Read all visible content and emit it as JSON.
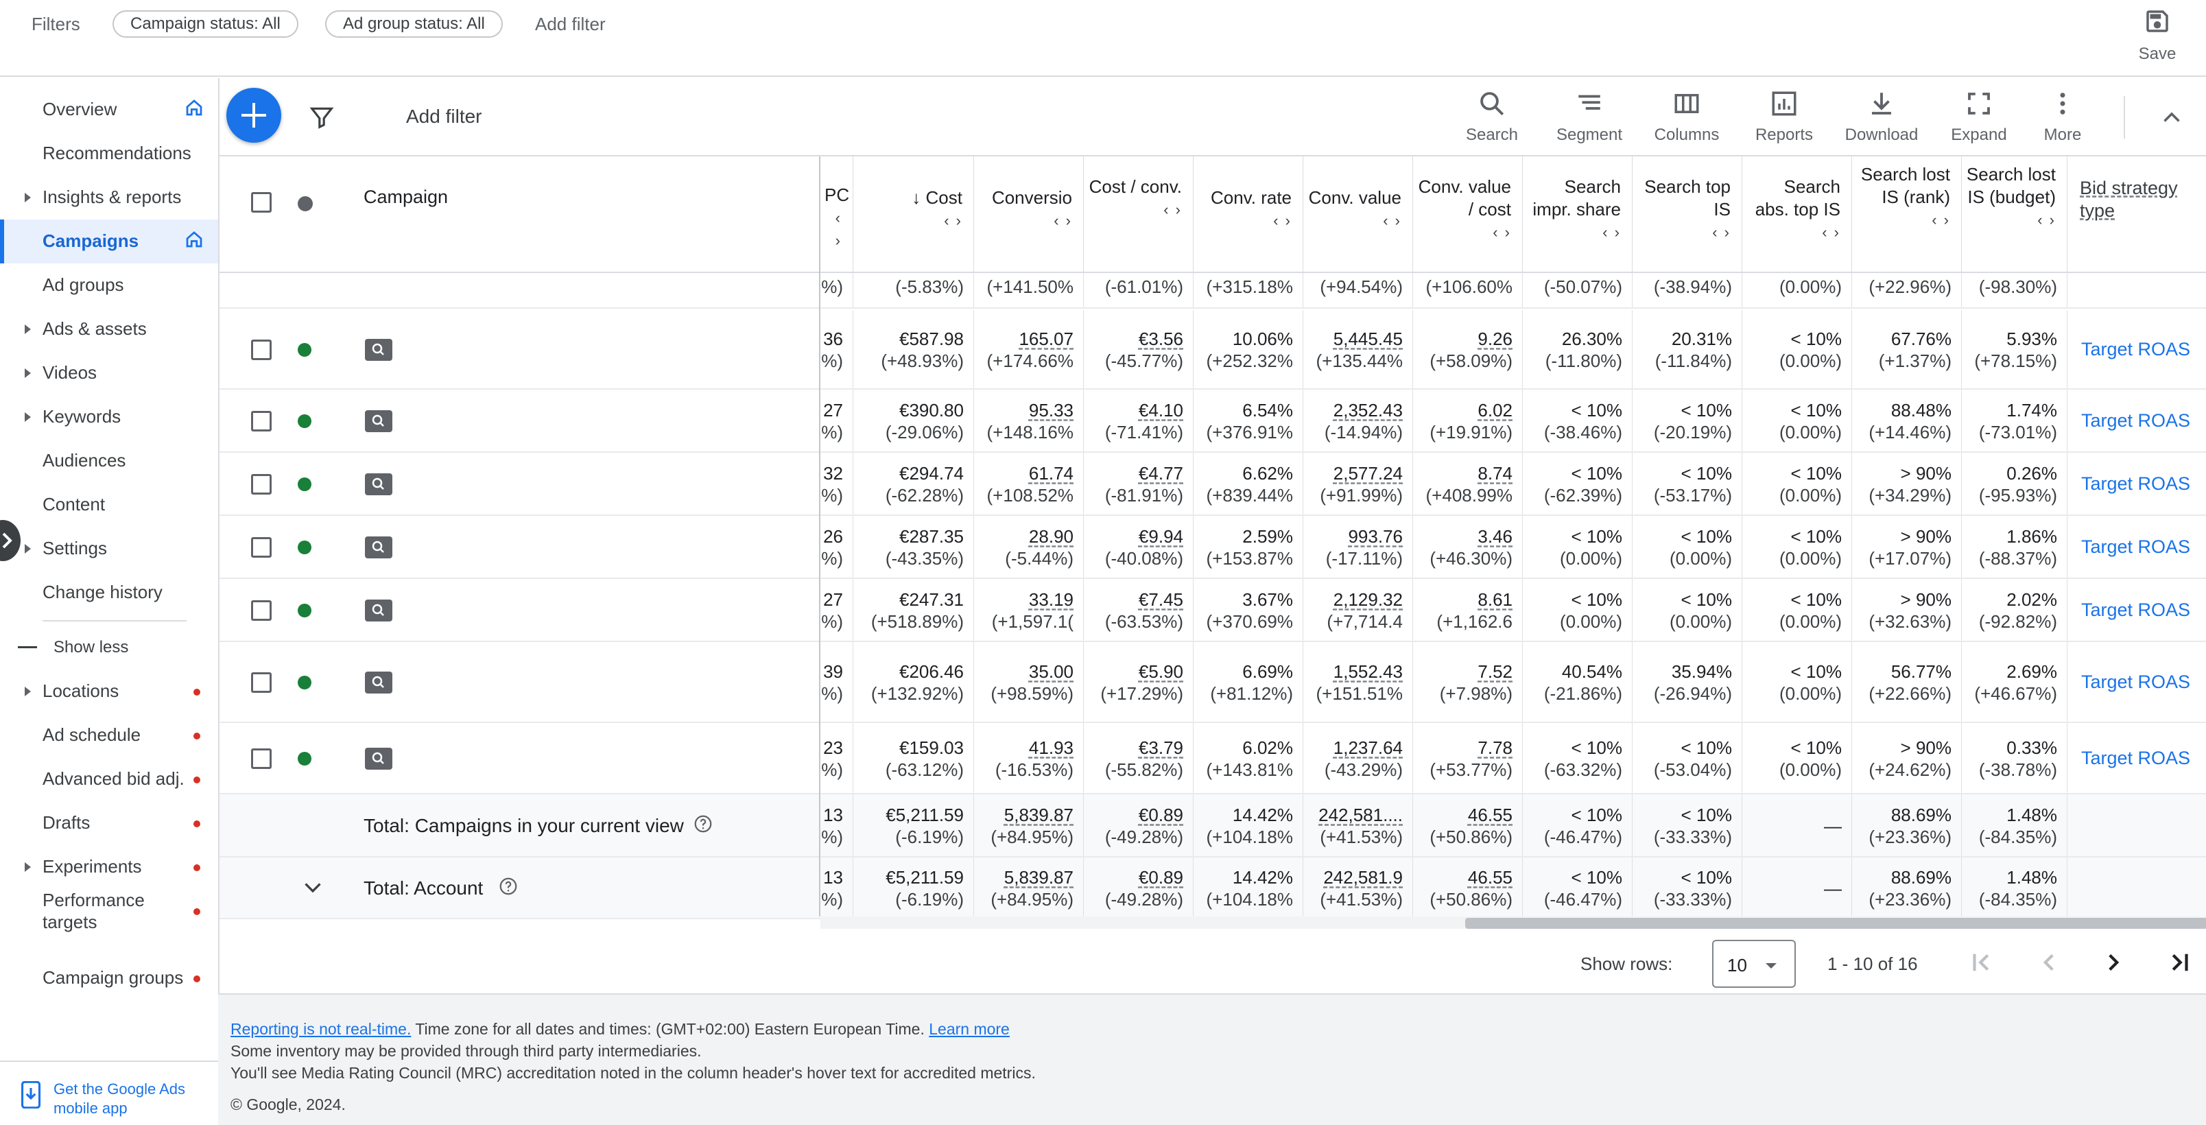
{
  "filterbar": {
    "label": "Filters",
    "chips": [
      "Campaign status: All",
      "Ad group status: All"
    ],
    "add_filter": "Add filter",
    "save": "Save"
  },
  "nav": {
    "items": [
      {
        "label": "Overview",
        "caret": false,
        "home": true,
        "dot": false,
        "active": false
      },
      {
        "label": "Recommendations",
        "caret": false,
        "home": false,
        "dot": false,
        "active": false
      },
      {
        "label": "Insights & reports",
        "caret": true,
        "home": false,
        "dot": false,
        "active": false
      },
      {
        "label": "Campaigns",
        "caret": false,
        "home": true,
        "dot": false,
        "active": true
      },
      {
        "label": "Ad groups",
        "caret": false,
        "home": false,
        "dot": false,
        "active": false
      },
      {
        "label": "Ads & assets",
        "caret": true,
        "home": false,
        "dot": false,
        "active": false
      },
      {
        "label": "Videos",
        "caret": true,
        "home": false,
        "dot": false,
        "active": false
      },
      {
        "label": "Keywords",
        "caret": true,
        "home": false,
        "dot": false,
        "active": false
      },
      {
        "label": "Audiences",
        "caret": false,
        "home": false,
        "dot": false,
        "active": false
      },
      {
        "label": "Content",
        "caret": false,
        "home": false,
        "dot": false,
        "active": false
      },
      {
        "label": "Settings",
        "caret": true,
        "home": false,
        "dot": false,
        "active": false
      },
      {
        "label": "Change history",
        "caret": false,
        "home": false,
        "dot": false,
        "active": false
      }
    ],
    "show_less": "Show less",
    "more_items": [
      {
        "label": "Locations",
        "caret": true
      },
      {
        "label": "Ad schedule",
        "caret": false
      },
      {
        "label": "Advanced bid adj.",
        "caret": false
      },
      {
        "label": "Drafts",
        "caret": false
      },
      {
        "label": "Experiments",
        "caret": true
      },
      {
        "label": "Performance targets",
        "caret": false
      },
      {
        "label": "Campaign groups",
        "caret": false
      }
    ],
    "promo": "Get the Google Ads mobile app"
  },
  "toolbar": {
    "add_filter": "Add filter",
    "tools": [
      "Search",
      "Segment",
      "Columns",
      "Reports",
      "Download",
      "Expand",
      "More"
    ]
  },
  "table": {
    "campaign_header": "Campaign",
    "bid_header": "Bid strategy type",
    "columns": [
      {
        "label": "PC",
        "sort": false
      },
      {
        "label": "Cost",
        "sort": true
      },
      {
        "label": "Conversio",
        "sort": false
      },
      {
        "label": "Cost / conv.",
        "sort": false
      },
      {
        "label": "Conv. rate",
        "sort": false
      },
      {
        "label": "Conv. value",
        "sort": false
      },
      {
        "label": "Conv. value / cost",
        "sort": false
      },
      {
        "label": "Search impr. share",
        "sort": false
      },
      {
        "label": "Search top IS",
        "sort": false
      },
      {
        "label": "Search abs. top IS",
        "sort": false
      },
      {
        "label": "Search lost IS (rank)",
        "sort": false
      },
      {
        "label": "Search lost IS (budget)",
        "sort": false
      }
    ],
    "partial_row": [
      "%)",
      "(-5.83%)",
      "(+141.50%",
      "(-61.01%)",
      "(+315.18%",
      "(+94.54%)",
      "(+106.60%",
      "(-50.07%)",
      "(-38.94%)",
      "(0.00%)",
      "(+22.96%)",
      "(-98.30%)"
    ],
    "rows": [
      {
        "cells": [
          [
            "36",
            "%)"
          ],
          [
            "€587.98",
            "(+48.93%)"
          ],
          [
            "165.07",
            "(+174.66%"
          ],
          [
            "€3.56",
            "(-45.77%)"
          ],
          [
            "10.06%",
            "(+252.32%"
          ],
          [
            "5,445.45",
            "(+135.44%"
          ],
          [
            "9.26",
            "(+58.09%)"
          ],
          [
            "26.30%",
            "(-11.80%)"
          ],
          [
            "20.31%",
            "(-11.84%)"
          ],
          [
            "< 10%",
            "(0.00%)"
          ],
          [
            "67.76%",
            "(+1.37%)"
          ],
          [
            "5.93%",
            "(+78.15%)"
          ]
        ],
        "bid": "Target ROAS"
      },
      {
        "cells": [
          [
            "27",
            "%)"
          ],
          [
            "€390.80",
            "(-29.06%)"
          ],
          [
            "95.33",
            "(+148.16%"
          ],
          [
            "€4.10",
            "(-71.41%)"
          ],
          [
            "6.54%",
            "(+376.91%"
          ],
          [
            "2,352.43",
            "(-14.94%)"
          ],
          [
            "6.02",
            "(+19.91%)"
          ],
          [
            "< 10%",
            "(-38.46%)"
          ],
          [
            "< 10%",
            "(-20.19%)"
          ],
          [
            "< 10%",
            "(0.00%)"
          ],
          [
            "88.48%",
            "(+14.46%)"
          ],
          [
            "1.74%",
            "(-73.01%)"
          ]
        ],
        "bid": "Target ROAS"
      },
      {
        "cells": [
          [
            "32",
            "%)"
          ],
          [
            "€294.74",
            "(-62.28%)"
          ],
          [
            "61.74",
            "(+108.52%"
          ],
          [
            "€4.77",
            "(-81.91%)"
          ],
          [
            "6.62%",
            "(+839.44%"
          ],
          [
            "2,577.24",
            "(+91.99%)"
          ],
          [
            "8.74",
            "(+408.99%"
          ],
          [
            "< 10%",
            "(-62.39%)"
          ],
          [
            "< 10%",
            "(-53.17%)"
          ],
          [
            "< 10%",
            "(0.00%)"
          ],
          [
            "> 90%",
            "(+34.29%)"
          ],
          [
            "0.26%",
            "(-95.93%)"
          ]
        ],
        "bid": "Target ROAS"
      },
      {
        "cells": [
          [
            "26",
            "%)"
          ],
          [
            "€287.35",
            "(-43.35%)"
          ],
          [
            "28.90",
            "(-5.44%)"
          ],
          [
            "€9.94",
            "(-40.08%)"
          ],
          [
            "2.59%",
            "(+153.87%"
          ],
          [
            "993.76",
            "(-17.11%)"
          ],
          [
            "3.46",
            "(+46.30%)"
          ],
          [
            "< 10%",
            "(0.00%)"
          ],
          [
            "< 10%",
            "(0.00%)"
          ],
          [
            "< 10%",
            "(0.00%)"
          ],
          [
            "> 90%",
            "(+17.07%)"
          ],
          [
            "1.86%",
            "(-88.37%)"
          ]
        ],
        "bid": "Target ROAS"
      },
      {
        "cells": [
          [
            "27",
            "%)"
          ],
          [
            "€247.31",
            "(+518.89%)"
          ],
          [
            "33.19",
            "(+1,597.1("
          ],
          [
            "€7.45",
            "(-63.53%)"
          ],
          [
            "3.67%",
            "(+370.69%"
          ],
          [
            "2,129.32",
            "(+7,714.4"
          ],
          [
            "8.61",
            "(+1,162.6"
          ],
          [
            "< 10%",
            "(0.00%)"
          ],
          [
            "< 10%",
            "(0.00%)"
          ],
          [
            "< 10%",
            "(0.00%)"
          ],
          [
            "> 90%",
            "(+32.63%)"
          ],
          [
            "2.02%",
            "(-92.82%)"
          ]
        ],
        "bid": "Target ROAS"
      },
      {
        "cells": [
          [
            "39",
            "%)"
          ],
          [
            "€206.46",
            "(+132.92%)"
          ],
          [
            "35.00",
            "(+98.59%)"
          ],
          [
            "€5.90",
            "(+17.29%)"
          ],
          [
            "6.69%",
            "(+81.12%)"
          ],
          [
            "1,552.43",
            "(+151.51%"
          ],
          [
            "7.52",
            "(+7.98%)"
          ],
          [
            "40.54%",
            "(-21.86%)"
          ],
          [
            "35.94%",
            "(-26.94%)"
          ],
          [
            "< 10%",
            "(0.00%)"
          ],
          [
            "56.77%",
            "(+22.66%)"
          ],
          [
            "2.69%",
            "(+46.67%)"
          ]
        ],
        "bid": "Target ROAS"
      },
      {
        "cells": [
          [
            "23",
            "%)"
          ],
          [
            "€159.03",
            "(-63.12%)"
          ],
          [
            "41.93",
            "(-16.53%)"
          ],
          [
            "€3.79",
            "(-55.82%)"
          ],
          [
            "6.02%",
            "(+143.81%"
          ],
          [
            "1,237.64",
            "(-43.29%)"
          ],
          [
            "7.78",
            "(+53.77%)"
          ],
          [
            "< 10%",
            "(-63.32%)"
          ],
          [
            "< 10%",
            "(-53.04%)"
          ],
          [
            "< 10%",
            "(0.00%)"
          ],
          [
            "> 90%",
            "(+24.62%)"
          ],
          [
            "0.33%",
            "(-38.78%)"
          ]
        ],
        "bid": "Target ROAS"
      }
    ],
    "totals": [
      {
        "label": "Total: Campaigns in your current view",
        "cells": [
          [
            "13",
            "%)"
          ],
          [
            "€5,211.59",
            "(-6.19%)"
          ],
          [
            "5,839.87",
            "(+84.95%)"
          ],
          [
            "€0.89",
            "(-49.28%)"
          ],
          [
            "14.42%",
            "(+104.18%"
          ],
          [
            "242,581....",
            "(+41.53%)"
          ],
          [
            "46.55",
            "(+50.86%)"
          ],
          [
            "< 10%",
            "(-46.47%)"
          ],
          [
            "< 10%",
            "(-33.33%)"
          ],
          [
            "—",
            ""
          ],
          [
            "88.69%",
            "(+23.36%)"
          ],
          [
            "1.48%",
            "(-84.35%)"
          ]
        ]
      },
      {
        "label": "Total: Account",
        "cells": [
          [
            "13",
            "%)"
          ],
          [
            "€5,211.59",
            "(-6.19%)"
          ],
          [
            "5,839.87",
            "(+84.95%)"
          ],
          [
            "€0.89",
            "(-49.28%)"
          ],
          [
            "14.42%",
            "(+104.18%"
          ],
          [
            "242,581.9",
            "(+41.53%)"
          ],
          [
            "46.55",
            "(+50.86%)"
          ],
          [
            "< 10%",
            "(-46.47%)"
          ],
          [
            "< 10%",
            "(-33.33%)"
          ],
          [
            "—",
            ""
          ],
          [
            "88.69%",
            "(+23.36%)"
          ],
          [
            "1.48%",
            "(-84.35%)"
          ]
        ]
      }
    ]
  },
  "pager": {
    "show_rows": "Show rows:",
    "rows_value": "10",
    "range": "1 - 10 of 16"
  },
  "footer": {
    "link1": "Reporting is not real-time.",
    "tz": " Time zone for all dates and times: (GMT+02:00) Eastern European Time. ",
    "link2": "Learn more",
    "line2": "Some inventory may be provided through third party intermediaries.",
    "line3": "You'll see Media Rating Council (MRC) accreditation noted in the column header's hover text for accredited metrics.",
    "copyright": "© Google, 2024."
  }
}
